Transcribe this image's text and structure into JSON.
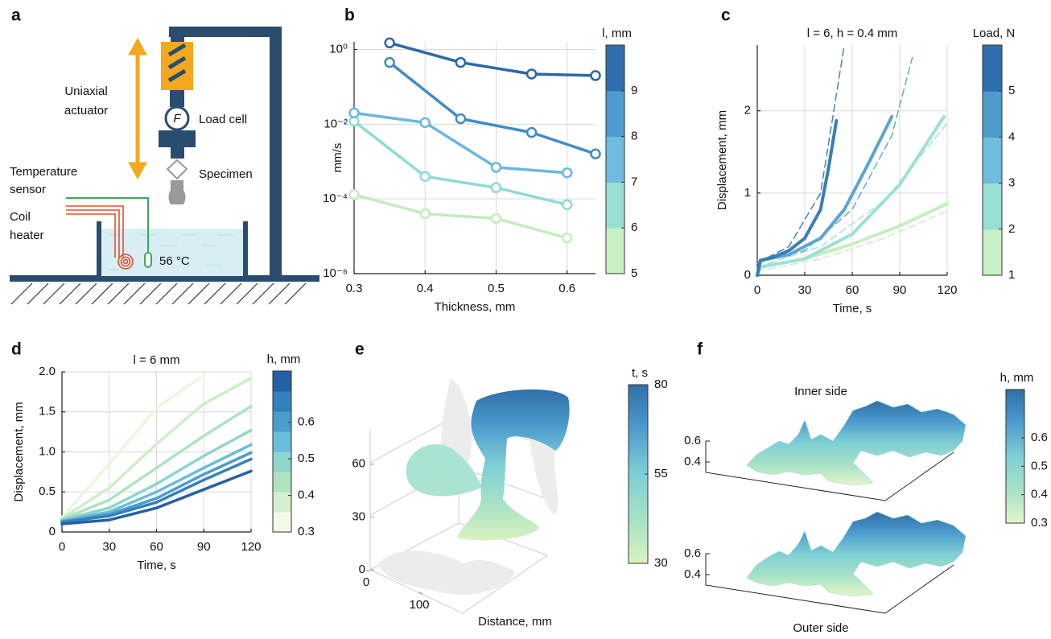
{
  "panel_labels": [
    "a",
    "b",
    "c",
    "d",
    "e",
    "f"
  ],
  "diagram": {
    "actuator": [
      "Uniaxial",
      "actuator"
    ],
    "force": "F",
    "load_cell": "Load cell",
    "specimen": "Specimen",
    "sensor": [
      "Temperature",
      "sensor"
    ],
    "heater": [
      "Coil",
      "heater"
    ],
    "temperature": "56 °C"
  },
  "chart_data": [
    {
      "type": "line",
      "log_y": true,
      "grid": true,
      "markers": true,
      "xlabel": "Thickness, mm",
      "ylabel": "mm/s",
      "xlim": [
        0.3,
        0.64
      ],
      "xticks": [
        0.3,
        0.4,
        0.5,
        0.6
      ],
      "ylim": [
        1e-06,
        1.6
      ],
      "yticks": [
        {
          "value": 1e-06,
          "label": "10⁻⁶"
        },
        {
          "value": 0.0001,
          "label": "10⁻⁴"
        },
        {
          "value": 0.01,
          "label": "10⁻²"
        },
        {
          "value": 1,
          "label": "10⁰"
        }
      ],
      "colorbar": {
        "label": "l, mm",
        "lim": [
          5,
          10
        ],
        "ticks": [
          5,
          6,
          7,
          8,
          9
        ],
        "colors": [
          "#c9efc4",
          "#97dfd2",
          "#6fbcdf",
          "#4d9ccd",
          "#2f6fad"
        ]
      },
      "series": [
        {
          "color": "#c2ecbd",
          "x": [
            0.3,
            0.4,
            0.5,
            0.6
          ],
          "values": [
            0.00013,
            4e-05,
            3e-05,
            9e-06
          ]
        },
        {
          "color": "#8edbd1",
          "x": [
            0.3,
            0.4,
            0.5,
            0.6
          ],
          "values": [
            0.012,
            0.0004,
            0.0002,
            7e-05
          ]
        },
        {
          "color": "#68b8dd",
          "x": [
            0.3,
            0.4,
            0.5,
            0.6
          ],
          "values": [
            0.02,
            0.011,
            0.0007,
            0.0005
          ]
        },
        {
          "color": "#3f8cc4",
          "x": [
            0.35,
            0.45,
            0.55,
            0.64
          ],
          "values": [
            0.45,
            0.014,
            0.006,
            0.0016
          ]
        },
        {
          "color": "#2c68a6",
          "x": [
            0.35,
            0.45,
            0.55,
            0.64
          ],
          "values": [
            1.5,
            0.45,
            0.22,
            0.2
          ]
        }
      ]
    },
    {
      "type": "line",
      "grid": true,
      "title": "l = 6, h = 0.4 mm",
      "xlabel": "Time, s",
      "ylabel": "Displacement, mm",
      "xlim": [
        0,
        120
      ],
      "xticks": [
        0,
        30,
        60,
        90,
        120
      ],
      "ylim": [
        0,
        2.8
      ],
      "yticks": [
        0,
        1,
        2
      ],
      "colorbar": {
        "label": "Load, N",
        "lim": [
          1,
          6
        ],
        "ticks": [
          1,
          2,
          3,
          4,
          5
        ],
        "colors": [
          "#c9efc4",
          "#97dfd2",
          "#6fbcdf",
          "#4d9ccd",
          "#2f6fad"
        ]
      },
      "series": [
        {
          "color": "#c6edbf",
          "dashed": true,
          "x": [
            0,
            40,
            80,
            120
          ],
          "values": [
            0.05,
            0.2,
            0.45,
            0.78
          ]
        },
        {
          "color": "#9ee0d4",
          "dashed": true,
          "x": [
            0,
            40,
            80,
            120
          ],
          "values": [
            0.1,
            0.35,
            0.9,
            1.85
          ]
        },
        {
          "color": "#5aa5d2",
          "dashed": true,
          "x": [
            0,
            30,
            60,
            85,
            98
          ],
          "values": [
            0.15,
            0.3,
            0.8,
            1.7,
            2.65
          ]
        },
        {
          "color": "#3a7db6",
          "dashed": true,
          "x": [
            0,
            20,
            40,
            55
          ],
          "values": [
            0.15,
            0.35,
            1.0,
            2.8
          ]
        },
        {
          "color": "#c6edbf",
          "x": [
            0,
            2,
            30,
            60,
            90,
            120
          ],
          "values": [
            0,
            0.1,
            0.2,
            0.38,
            0.6,
            0.87
          ]
        },
        {
          "color": "#9ee0d4",
          "x": [
            0,
            2,
            30,
            60,
            90,
            118
          ],
          "values": [
            0,
            0.1,
            0.2,
            0.5,
            1.1,
            1.93
          ]
        },
        {
          "color": "#5aa5d2",
          "x": [
            0,
            2,
            20,
            40,
            55,
            70,
            85
          ],
          "values": [
            0,
            0.18,
            0.25,
            0.45,
            0.8,
            1.35,
            1.93
          ]
        },
        {
          "color": "#3a7db6",
          "x": [
            0,
            2,
            10,
            20,
            30,
            40,
            45,
            50
          ],
          "values": [
            0,
            0.18,
            0.22,
            0.3,
            0.45,
            0.8,
            1.3,
            1.88
          ]
        }
      ]
    },
    {
      "type": "line",
      "grid": true,
      "title": "l = 6 mm",
      "xlabel": "Time, s",
      "ylabel": "Displacement, mm",
      "xlim": [
        0,
        120
      ],
      "xticks": [
        0,
        30,
        60,
        90,
        120
      ],
      "ylim": [
        0,
        2
      ],
      "yticks": [
        0,
        0.5,
        {
          "value": 1,
          "label": "1.0"
        },
        1.5,
        {
          "value": 2,
          "label": "2.0"
        }
      ],
      "colorbar": {
        "label": "h, mm",
        "lim": [
          0.3,
          0.74
        ],
        "ticks": [
          0.3,
          0.4,
          0.5,
          0.6
        ],
        "colors": [
          "#f2fbe7",
          "#d3f0cc",
          "#aee3c0",
          "#8ed5cc",
          "#6bbcdc",
          "#4d9ccd",
          "#3480bc",
          "#2360a8"
        ]
      },
      "series": [
        {
          "color": "#eaf7dd",
          "x": [
            0,
            30,
            60,
            88
          ],
          "values": [
            0.18,
            0.85,
            1.55,
            1.93
          ]
        },
        {
          "color": "#cdeec6",
          "x": [
            0,
            30,
            60,
            90,
            120
          ],
          "values": [
            0.17,
            0.55,
            1.1,
            1.6,
            1.92
          ]
        },
        {
          "color": "#ade3bf",
          "x": [
            0,
            30,
            60,
            90,
            120
          ],
          "values": [
            0.16,
            0.4,
            0.8,
            1.2,
            1.57
          ]
        },
        {
          "color": "#8cd5cc",
          "x": [
            0,
            30,
            60,
            90,
            120
          ],
          "values": [
            0.15,
            0.3,
            0.6,
            0.95,
            1.27
          ]
        },
        {
          "color": "#6bbcdc",
          "x": [
            0,
            30,
            60,
            90,
            120
          ],
          "values": [
            0.14,
            0.25,
            0.5,
            0.8,
            1.09
          ]
        },
        {
          "color": "#4d9ccd",
          "x": [
            0,
            30,
            60,
            90,
            120
          ],
          "values": [
            0.13,
            0.22,
            0.42,
            0.72,
            0.99
          ]
        },
        {
          "color": "#3480bc",
          "x": [
            0,
            30,
            60,
            90,
            120
          ],
          "values": [
            0.12,
            0.2,
            0.37,
            0.65,
            0.91
          ]
        },
        {
          "color": "#2360a8",
          "x": [
            0,
            30,
            60,
            90,
            120
          ],
          "values": [
            0.1,
            0.15,
            0.3,
            0.53,
            0.76
          ]
        }
      ]
    },
    {
      "type": "surface3d",
      "xlabel": "Distance, mm",
      "xticks": [
        0,
        100
      ],
      "zlim": [
        0,
        80
      ],
      "zticks": [
        0,
        30,
        60
      ],
      "colorbar": {
        "label": "t, s",
        "gradient": true,
        "lim": [
          30,
          80
        ],
        "ticks": [
          30,
          55,
          80
        ],
        "colors": [
          "#d9f2c0",
          "#a5e2c6",
          "#7fcfd6",
          "#4d9ccd",
          "#2f6fa8"
        ]
      }
    },
    {
      "type": "surface3d",
      "surface_labels": [
        "Inner side",
        "Outer side"
      ],
      "zlim": [
        0.3,
        0.7
      ],
      "zticks": [
        0.4,
        0.6
      ],
      "colorbar": {
        "label": "h, mm",
        "gradient": true,
        "lim": [
          0.3,
          0.77
        ],
        "ticks": [
          0.3,
          0.4,
          0.5,
          0.6
        ],
        "colors": [
          "#e4f5c8",
          "#a5e2c6",
          "#7fcfd6",
          "#4d9ccd",
          "#2f6fa8"
        ]
      }
    }
  ]
}
